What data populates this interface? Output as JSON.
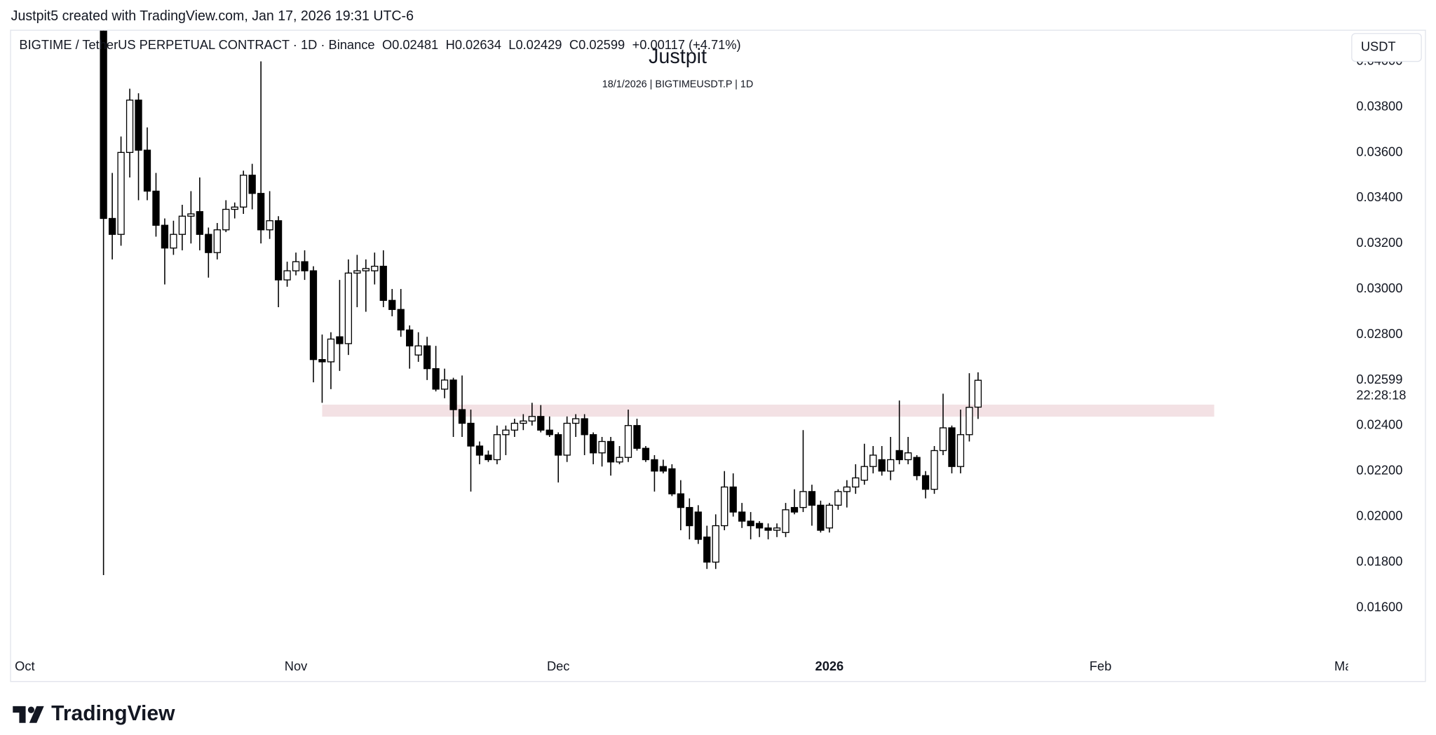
{
  "attribution": "Justpit5 created with TradingView.com, Jan 17, 2026 19:31 UTC-6",
  "chart_data": {
    "type": "candlestick",
    "title": "BIGTIME / TetherUS PERPETUAL CONTRACT · 1D · Binance",
    "legend_values": [
      "O0.02481",
      "H0.02634",
      "L0.02429",
      "C0.02599",
      "+0.00117 (+4.71%)"
    ],
    "watermark": "Justpit",
    "subtitle": "18/1/2026 | BIGTIMEUSDT.P | 1D",
    "currency": "USDT",
    "up_color": "#ffffff",
    "down_color": "#000000",
    "open": [
      0.0425,
      0.0331,
      0.0324,
      0.036,
      0.0383,
      0.0361,
      0.0343,
      0.0328,
      0.0318,
      0.0324,
      0.0332,
      0.0334,
      0.0324,
      0.0316,
      0.0326,
      0.0335,
      0.0336,
      0.035,
      0.0342,
      0.0326,
      0.033,
      0.0304,
      0.0308,
      0.0312,
      0.0308,
      0.0269,
      0.0268,
      0.0279,
      0.0276,
      0.0307,
      0.0308,
      0.0308,
      0.031,
      0.0295,
      0.0291,
      0.0282,
      0.0271,
      0.0275,
      0.0265,
      0.0256,
      0.026,
      0.0247,
      0.0241,
      0.0231,
      0.0227,
      0.0225,
      0.0236,
      0.0238,
      0.0241,
      0.0242,
      0.0244,
      0.0238,
      0.0236,
      0.0227,
      0.0241,
      0.0243,
      0.0236,
      0.0228,
      0.0233,
      0.0224,
      0.0226,
      0.024,
      0.023,
      0.0225,
      0.0222,
      0.0221,
      0.021,
      0.0204,
      0.0202,
      0.0191,
      0.018,
      0.0196,
      0.0213,
      0.0202,
      0.0198,
      0.0197,
      0.0195,
      0.0194,
      0.0193,
      0.0204,
      0.0204,
      0.0211,
      0.0205,
      0.0195,
      0.0205,
      0.0211,
      0.0213,
      0.0216,
      0.0222,
      0.0225,
      0.022,
      0.0229,
      0.0225,
      0.0226,
      0.0218,
      0.0212,
      0.0229,
      0.0239,
      0.0222,
      0.0236,
      0.02481
    ],
    "high": [
      0.044,
      0.0351,
      0.0367,
      0.0388,
      0.0386,
      0.0371,
      0.0351,
      0.0331,
      0.033,
      0.0337,
      0.0343,
      0.0349,
      0.0327,
      0.0329,
      0.0339,
      0.0338,
      0.0352,
      0.0355,
      0.04,
      0.0343,
      0.0332,
      0.0312,
      0.0316,
      0.0317,
      0.031,
      0.028,
      0.0281,
      0.0304,
      0.0313,
      0.0315,
      0.0313,
      0.0316,
      0.0317,
      0.03,
      0.03,
      0.0284,
      0.0281,
      0.0279,
      0.0275,
      0.0265,
      0.0261,
      0.0262,
      0.0247,
      0.0233,
      0.0229,
      0.024,
      0.024,
      0.0243,
      0.0245,
      0.025,
      0.0249,
      0.0244,
      0.0237,
      0.0244,
      0.0245,
      0.0245,
      0.0237,
      0.0235,
      0.0235,
      0.0231,
      0.0247,
      0.0243,
      0.0231,
      0.0227,
      0.0225,
      0.0223,
      0.0216,
      0.0208,
      0.0205,
      0.0196,
      0.0201,
      0.022,
      0.0219,
      0.0206,
      0.0202,
      0.0198,
      0.0197,
      0.0197,
      0.0206,
      0.0212,
      0.0238,
      0.0214,
      0.0207,
      0.0206,
      0.0212,
      0.0216,
      0.0223,
      0.0232,
      0.0231,
      0.0231,
      0.0235,
      0.0251,
      0.0235,
      0.0227,
      0.022,
      0.0231,
      0.0254,
      0.024,
      0.0247,
      0.0263,
      0.02634
    ],
    "low": [
      0.01743,
      0.0313,
      0.0319,
      0.0349,
      0.0339,
      0.0339,
      0.0323,
      0.0302,
      0.0315,
      0.0317,
      0.032,
      0.0317,
      0.0305,
      0.0313,
      0.0325,
      0.0331,
      0.0333,
      0.0335,
      0.032,
      0.0322,
      0.0292,
      0.0301,
      0.0306,
      0.0304,
      0.0259,
      0.025,
      0.0256,
      0.0264,
      0.0271,
      0.0292,
      0.029,
      0.0302,
      0.0292,
      0.0288,
      0.0279,
      0.0265,
      0.0268,
      0.026,
      0.0255,
      0.0252,
      0.0235,
      0.0235,
      0.0211,
      0.0223,
      0.0224,
      0.0223,
      0.0227,
      0.0235,
      0.0238,
      0.024,
      0.0237,
      0.0235,
      0.0215,
      0.0224,
      0.0235,
      0.0227,
      0.0223,
      0.0222,
      0.0218,
      0.0223,
      0.0224,
      0.0229,
      0.0224,
      0.0211,
      0.0219,
      0.0209,
      0.0194,
      0.019,
      0.0188,
      0.0177,
      0.0177,
      0.0194,
      0.02,
      0.0195,
      0.019,
      0.0191,
      0.019,
      0.0191,
      0.0191,
      0.0201,
      0.0202,
      0.0196,
      0.0193,
      0.0193,
      0.0203,
      0.0204,
      0.021,
      0.0214,
      0.0219,
      0.0218,
      0.0216,
      0.0223,
      0.0223,
      0.0216,
      0.0208,
      0.021,
      0.0227,
      0.0219,
      0.0219,
      0.0233,
      0.02429
    ],
    "close": [
      0.0331,
      0.0324,
      0.036,
      0.0383,
      0.0361,
      0.0343,
      0.0328,
      0.0318,
      0.0324,
      0.0332,
      0.0333,
      0.0324,
      0.0316,
      0.0326,
      0.0335,
      0.0336,
      0.035,
      0.0342,
      0.0326,
      0.033,
      0.0304,
      0.0308,
      0.0312,
      0.0308,
      0.0269,
      0.0268,
      0.0278,
      0.0276,
      0.0307,
      0.0308,
      0.0309,
      0.031,
      0.0295,
      0.0291,
      0.0282,
      0.0275,
      0.0275,
      0.0265,
      0.0256,
      0.026,
      0.0247,
      0.0241,
      0.0231,
      0.0227,
      0.0225,
      0.0236,
      0.0238,
      0.0241,
      0.0242,
      0.0244,
      0.0238,
      0.0236,
      0.0227,
      0.0241,
      0.0243,
      0.0236,
      0.0228,
      0.0233,
      0.0224,
      0.0226,
      0.024,
      0.023,
      0.0225,
      0.022,
      0.022,
      0.021,
      0.0204,
      0.0196,
      0.019,
      0.018,
      0.0196,
      0.0213,
      0.0202,
      0.0198,
      0.0196,
      0.0195,
      0.0194,
      0.0195,
      0.0203,
      0.0202,
      0.0211,
      0.0205,
      0.0194,
      0.0205,
      0.0211,
      0.0213,
      0.0217,
      0.0222,
      0.0227,
      0.022,
      0.0225,
      0.0225,
      0.0228,
      0.0218,
      0.0212,
      0.0229,
      0.0239,
      0.0222,
      0.0236,
      0.0248,
      0.02599
    ],
    "xlim": [
      -10.58,
      142.1
    ],
    "xticks": [
      {
        "value": -9,
        "label": "Oct"
      },
      {
        "value": 22,
        "label": "Nov"
      },
      {
        "value": 52,
        "label": "Dec"
      },
      {
        "value": 83,
        "label": "2026"
      },
      {
        "value": 114,
        "label": "Feb"
      },
      {
        "value": 142,
        "label": "Mar"
      }
    ],
    "ylim": [
      0.01396,
      0.04139
    ],
    "yticks": [
      {
        "value": 0.016,
        "label": "0.01600"
      },
      {
        "value": 0.018,
        "label": "0.01800"
      },
      {
        "value": 0.02,
        "label": "0.02000"
      },
      {
        "value": 0.022,
        "label": "0.02200"
      },
      {
        "value": 0.024,
        "label": "0.02400"
      },
      {
        "value": 0.028,
        "label": "0.02800"
      },
      {
        "value": 0.03,
        "label": "0.03000"
      },
      {
        "value": 0.032,
        "label": "0.03200"
      },
      {
        "value": 0.034,
        "label": "0.03400"
      },
      {
        "value": 0.036,
        "label": "0.03600"
      },
      {
        "value": 0.038,
        "label": "0.03800"
      },
      {
        "value": 0.04,
        "label": "0.04000"
      }
    ],
    "zone": {
      "x": [
        25,
        127
      ],
      "y": [
        0.02439,
        0.02492
      ],
      "color": "#f3e1e4"
    },
    "last_price": 0.02599,
    "countdown": "22:28:18"
  },
  "footer": {
    "logo": "TradingView"
  }
}
